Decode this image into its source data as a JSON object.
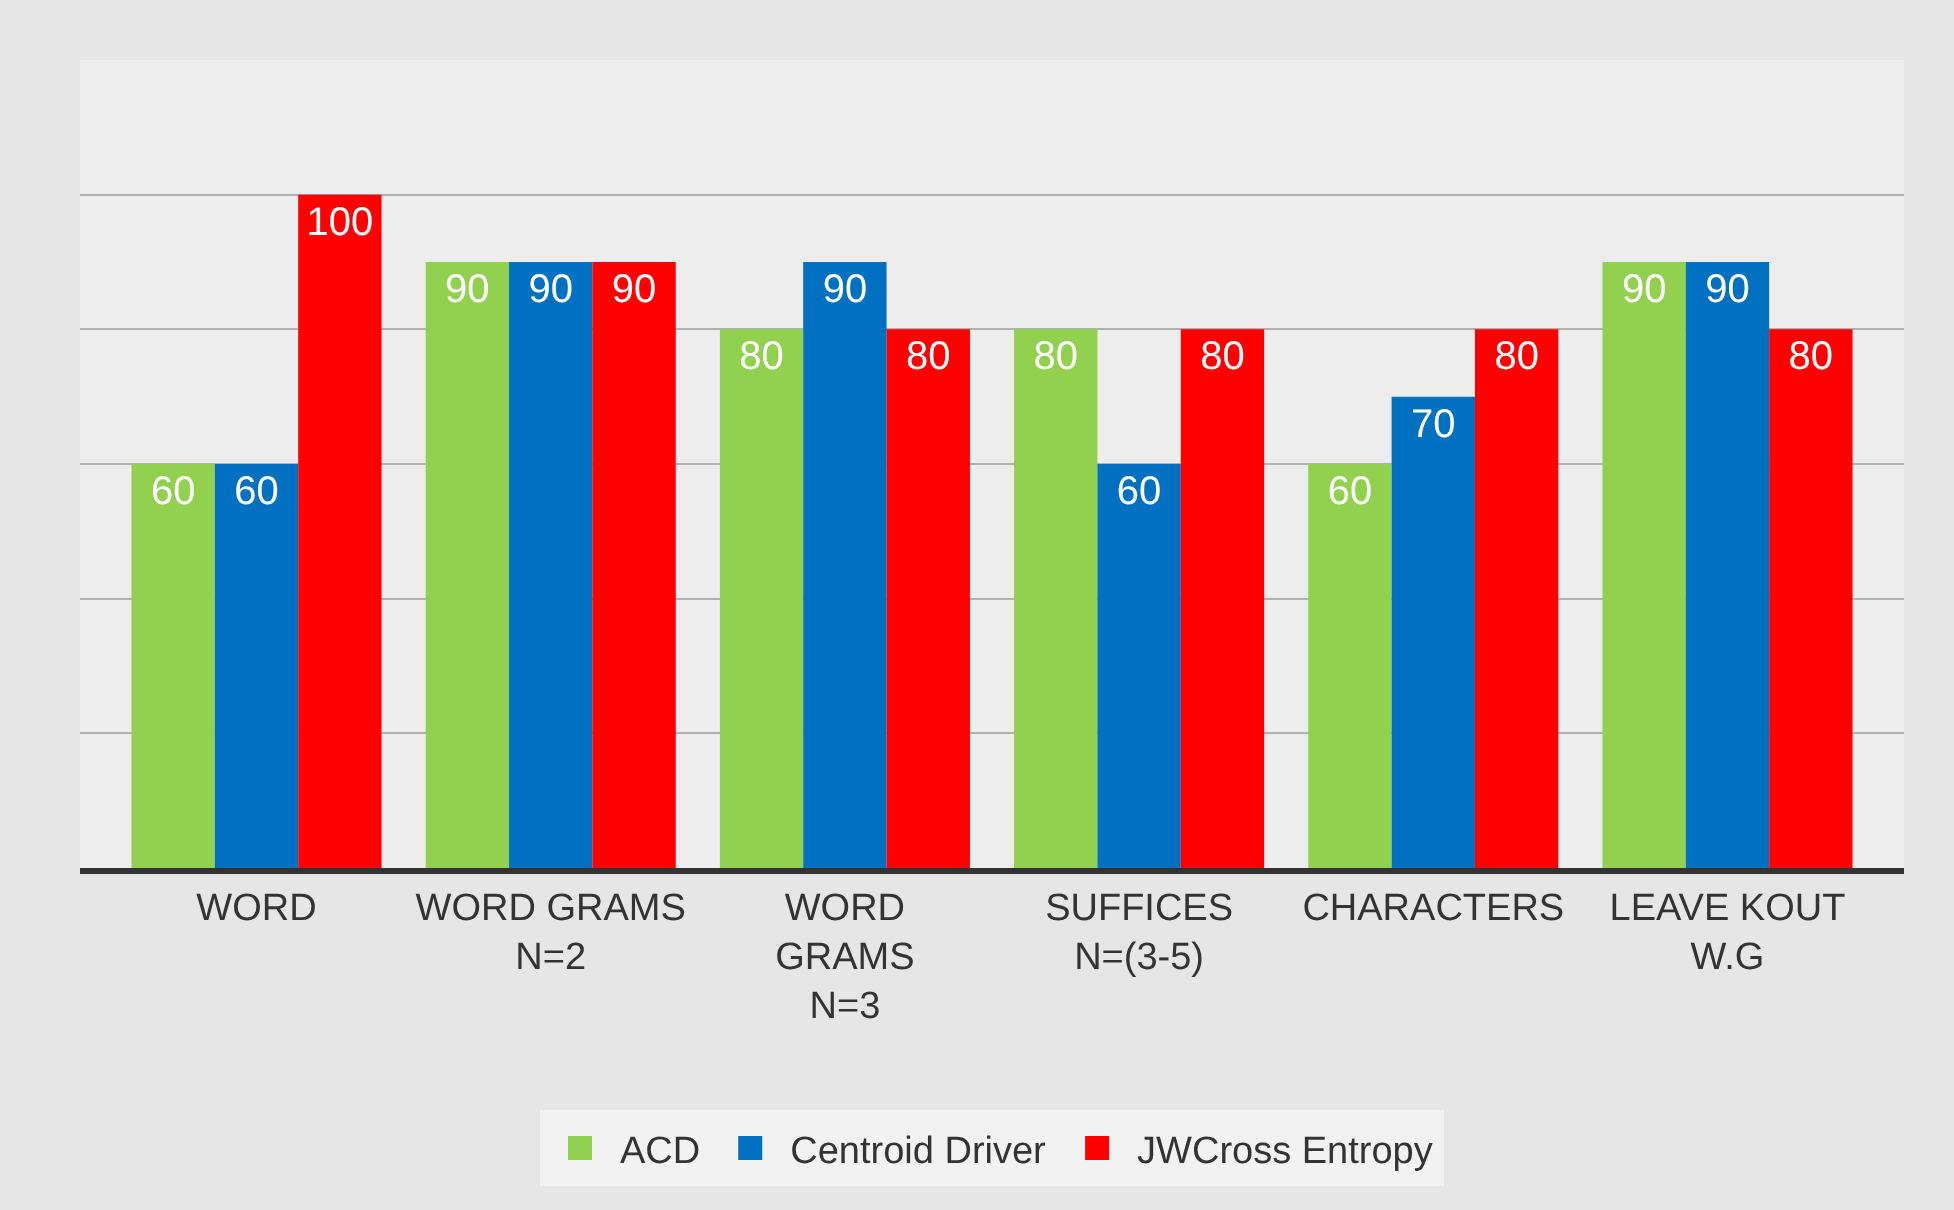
{
  "chart_data": {
    "type": "bar",
    "categories": [
      "WORD",
      "WORD GRAMS\nN=2",
      "WORD\nGRAMS\nN=3",
      "SUFFICES\nN=(3-5)",
      "CHARACTERS",
      "LEAVE KOUT\nW.G"
    ],
    "series": [
      {
        "name": "ACD",
        "color": "#92d050",
        "values": [
          60,
          90,
          80,
          80,
          60,
          90
        ]
      },
      {
        "name": "Centroid Driver",
        "color": "#0070c0",
        "values": [
          60,
          90,
          90,
          60,
          70,
          90
        ]
      },
      {
        "name": "JWCross Entropy",
        "color": "#ff0000",
        "values": [
          100,
          90,
          80,
          80,
          80,
          80
        ]
      }
    ],
    "ylim": [
      0,
      120
    ],
    "yticks": [
      {
        "value": 0,
        "label": null
      },
      {
        "value": 20,
        "label": null
      },
      {
        "value": 40,
        "label": null
      },
      {
        "value": 60,
        "label": null
      },
      {
        "value": 80,
        "label": null
      },
      {
        "value": 100,
        "label": null
      },
      {
        "value": 120,
        "label": null
      }
    ],
    "tick_labels": "x",
    "grid": "y",
    "legend": "bottom",
    "data_labels": true
  }
}
